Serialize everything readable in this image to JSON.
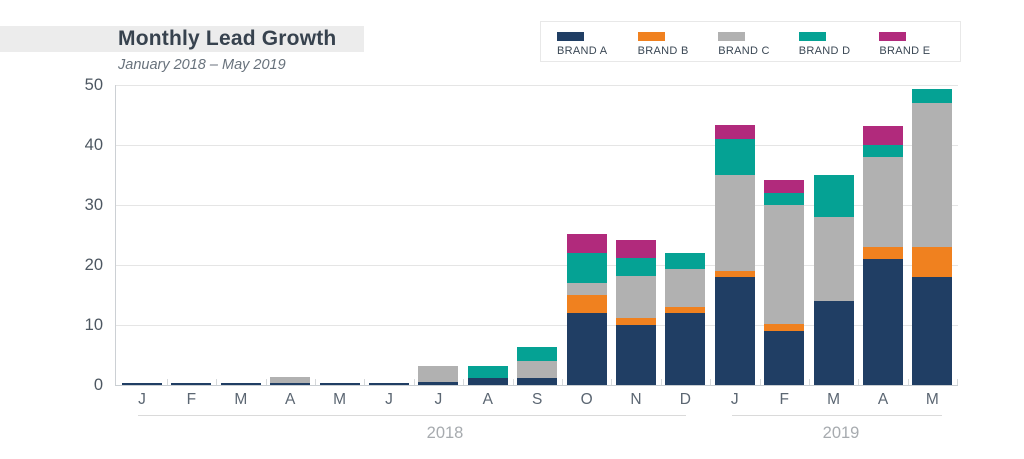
{
  "header": {
    "title": "Monthly Lead Growth",
    "subtitle": "January 2018 – May 2019"
  },
  "legend": {
    "items": [
      {
        "label": "BRAND A",
        "color": "#203e64"
      },
      {
        "label": "BRAND B",
        "color": "#f0811f"
      },
      {
        "label": "BRAND C",
        "color": "#b1b1b1"
      },
      {
        "label": "BRAND D",
        "color": "#05a294"
      },
      {
        "label": "BRAND E",
        "color": "#b12a7c"
      }
    ]
  },
  "chart_data": {
    "type": "bar",
    "stacked": true,
    "title": "Monthly Lead Growth",
    "subtitle": "January 2018 – May 2019",
    "categories": [
      "J",
      "F",
      "M",
      "A",
      "M",
      "J",
      "J",
      "A",
      "S",
      "O",
      "N",
      "D",
      "J",
      "F",
      "M",
      "A",
      "M"
    ],
    "groups": [
      {
        "label": "2018",
        "from": 0,
        "to": 11
      },
      {
        "label": "2019",
        "from": 12,
        "to": 16
      }
    ],
    "series": [
      {
        "name": "BRAND A",
        "color": "#203e64",
        "values": [
          0.4,
          0.4,
          0.4,
          0.4,
          0.4,
          0.4,
          0.5,
          1.2,
          1.2,
          12,
          10,
          12,
          18,
          9,
          14,
          21,
          18
        ]
      },
      {
        "name": "BRAND B",
        "color": "#f0811f",
        "values": [
          0,
          0,
          0,
          0,
          0,
          0,
          0,
          0,
          0,
          3,
          1.2,
          1,
          1,
          1.2,
          0,
          2,
          5
        ]
      },
      {
        "name": "BRAND C",
        "color": "#b1b1b1",
        "values": [
          0,
          0,
          0,
          1,
          0,
          0,
          2.7,
          0,
          2.8,
          2,
          7,
          6.3,
          16,
          19.8,
          14,
          15,
          24
        ]
      },
      {
        "name": "BRAND D",
        "color": "#05a294",
        "values": [
          0,
          0,
          0,
          0,
          0,
          0,
          0,
          2,
          2.3,
          5,
          3,
          2.7,
          6,
          2,
          7,
          2,
          2.3
        ]
      },
      {
        "name": "BRAND E",
        "color": "#b12a7c",
        "values": [
          0,
          0,
          0,
          0,
          0,
          0,
          0,
          0,
          0,
          3.2,
          3,
          0,
          2.4,
          2.2,
          0,
          3.2,
          0
        ]
      }
    ],
    "ylim": [
      0,
      50
    ],
    "yticks": [
      0,
      10,
      20,
      30,
      40,
      50
    ],
    "grid": true,
    "legend_position": "top-right"
  }
}
